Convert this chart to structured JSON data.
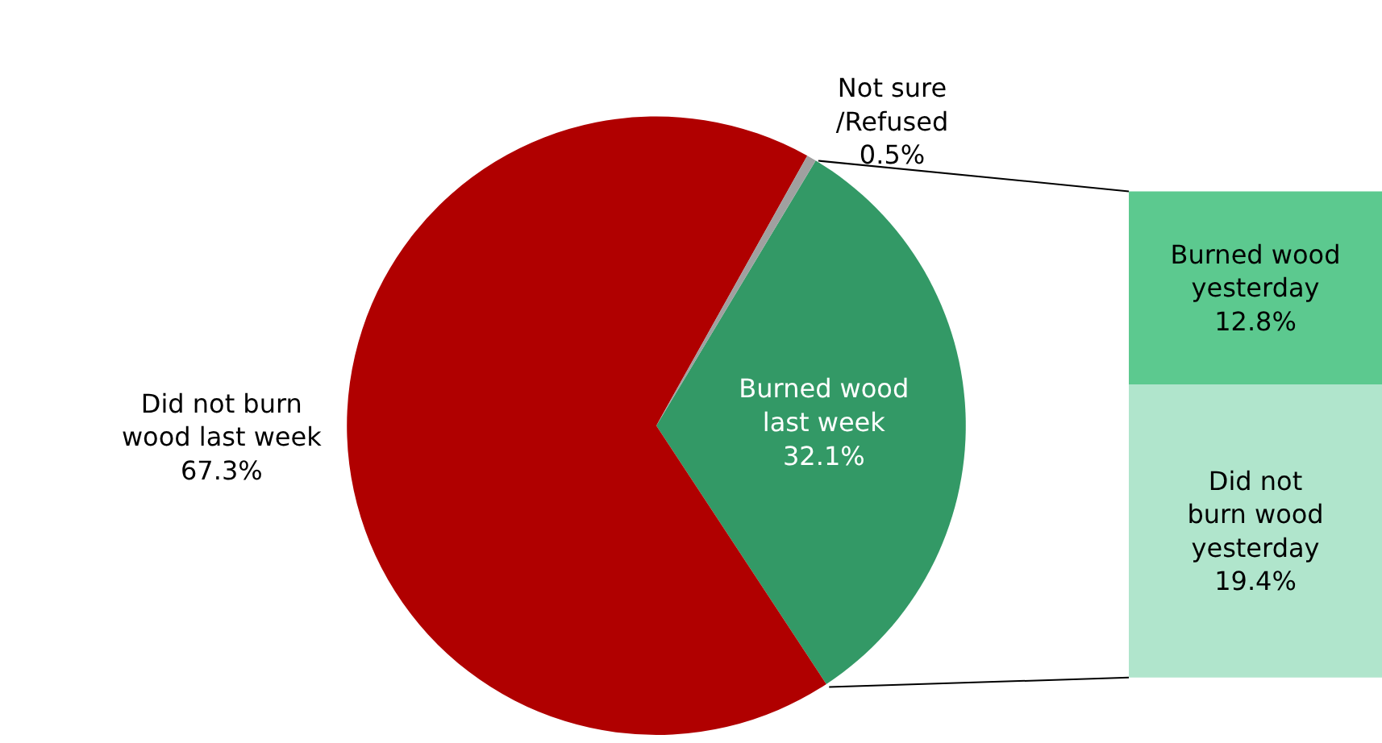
{
  "chart_data": [
    {
      "type": "pie",
      "categories": [
        "Burned wood\nlast week",
        "Did not burn\nwood last week",
        "Not sure\n/Refused"
      ],
      "values": [
        32.1,
        67.3,
        0.5
      ],
      "colors": [
        "#339966",
        "#b00000",
        "#a0a0a0"
      ],
      "value_labels": [
        "32.1%",
        "67.3%",
        "0.5%"
      ]
    },
    {
      "type": "bar",
      "stacked": true,
      "categories": [
        null
      ],
      "series": [
        {
          "name": "Did not\nburn wood\nyesterday",
          "color": "#b0e5cc",
          "values": [
            19.4
          ],
          "value_labels": [
            "19.4%"
          ]
        },
        {
          "name": "Burned wood\nyesterday",
          "color": "#5cc98f",
          "values": [
            12.8
          ],
          "value_labels": [
            "12.8%"
          ]
        }
      ]
    }
  ]
}
